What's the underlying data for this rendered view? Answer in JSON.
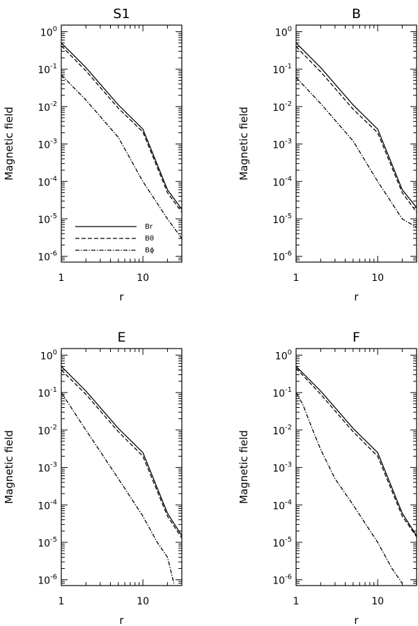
{
  "colors": {
    "background": "#ffffff",
    "ink": "#000000"
  },
  "chart_data": [
    {
      "type": "line",
      "title": "S1",
      "xlabel": "r",
      "ylabel": "Magnetic field",
      "x_scale": "log",
      "y_scale": "log",
      "xlim": [
        1,
        30
      ],
      "ylim": [
        7e-07,
        1.5
      ],
      "x_ticks": [
        1,
        10
      ],
      "x_tick_labels": [
        "1",
        "10"
      ],
      "y_ticks": [
        1,
        0.1,
        0.01,
        0.001,
        0.0001,
        1e-05,
        1e-06
      ],
      "y_tick_labels": [
        {
          "base": "10",
          "exp": "0"
        },
        {
          "base": "10",
          "exp": "-1"
        },
        {
          "base": "10",
          "exp": "-2"
        },
        {
          "base": "10",
          "exp": "-3"
        },
        {
          "base": "10",
          "exp": "-4"
        },
        {
          "base": "10",
          "exp": "-5"
        },
        {
          "base": "10",
          "exp": "-6"
        }
      ],
      "grid": false,
      "legend": {
        "placement": "bottom-left",
        "entries": [
          "Br",
          "Bθ",
          "Bϕ"
        ]
      },
      "series": [
        {
          "name": "Br",
          "linestyle": "solid",
          "x": [
            1,
            2,
            5,
            10,
            20,
            30
          ],
          "y": [
            0.5,
            0.11,
            0.011,
            0.0025,
            6e-05,
            1.8e-05
          ]
        },
        {
          "name": "Bθ",
          "linestyle": "dashed",
          "x": [
            1,
            2,
            5,
            10,
            20,
            30
          ],
          "y": [
            0.42,
            0.09,
            0.009,
            0.0021,
            5e-05,
            1.5e-05
          ]
        },
        {
          "name": "Bϕ",
          "linestyle": "dashdot",
          "x": [
            1,
            2,
            5,
            10,
            20,
            30
          ],
          "y": [
            0.07,
            0.015,
            0.0015,
            0.0001,
            1e-05,
            3e-06
          ]
        }
      ]
    },
    {
      "type": "line",
      "title": "B",
      "xlabel": "r",
      "ylabel": "Magnetic field",
      "x_scale": "log",
      "y_scale": "log",
      "xlim": [
        1,
        30
      ],
      "ylim": [
        7e-07,
        1.5
      ],
      "x_ticks": [
        1,
        10
      ],
      "x_tick_labels": [
        "1",
        "10"
      ],
      "y_ticks": [
        1,
        0.1,
        0.01,
        0.001,
        0.0001,
        1e-05,
        1e-06
      ],
      "y_tick_labels": [
        {
          "base": "10",
          "exp": "0"
        },
        {
          "base": "10",
          "exp": "-1"
        },
        {
          "base": "10",
          "exp": "-2"
        },
        {
          "base": "10",
          "exp": "-3"
        },
        {
          "base": "10",
          "exp": "-4"
        },
        {
          "base": "10",
          "exp": "-5"
        },
        {
          "base": "10",
          "exp": "-6"
        }
      ],
      "grid": false,
      "series": [
        {
          "name": "Br",
          "linestyle": "solid",
          "x": [
            1,
            2,
            5,
            10,
            20,
            30
          ],
          "y": [
            0.5,
            0.11,
            0.011,
            0.0025,
            6e-05,
            2e-05
          ]
        },
        {
          "name": "Bθ",
          "linestyle": "dashed",
          "x": [
            1,
            2,
            5,
            10,
            20,
            30
          ],
          "y": [
            0.4,
            0.085,
            0.0085,
            0.002,
            5e-05,
            1.5e-05
          ]
        },
        {
          "name": "Bϕ",
          "linestyle": "dashdot",
          "x": [
            1,
            2,
            5,
            10,
            20,
            30
          ],
          "y": [
            0.06,
            0.012,
            0.0012,
            0.0001,
            1e-05,
            6e-06
          ]
        }
      ]
    },
    {
      "type": "line",
      "title": "E",
      "xlabel": "r",
      "ylabel": "Magnetic field",
      "x_scale": "log",
      "y_scale": "log",
      "xlim": [
        1,
        30
      ],
      "ylim": [
        7e-07,
        1.5
      ],
      "x_ticks": [
        1,
        10
      ],
      "x_tick_labels": [
        "1",
        "10"
      ],
      "y_ticks": [
        1,
        0.1,
        0.01,
        0.001,
        0.0001,
        1e-05,
        1e-06
      ],
      "y_tick_labels": [
        {
          "base": "10",
          "exp": "0"
        },
        {
          "base": "10",
          "exp": "-1"
        },
        {
          "base": "10",
          "exp": "-2"
        },
        {
          "base": "10",
          "exp": "-3"
        },
        {
          "base": "10",
          "exp": "-4"
        },
        {
          "base": "10",
          "exp": "-5"
        },
        {
          "base": "10",
          "exp": "-6"
        }
      ],
      "grid": false,
      "series": [
        {
          "name": "Br",
          "linestyle": "solid",
          "x": [
            1,
            2,
            5,
            10,
            20,
            30
          ],
          "y": [
            0.5,
            0.11,
            0.011,
            0.0025,
            6e-05,
            1.5e-05
          ]
        },
        {
          "name": "Bθ",
          "linestyle": "dashed",
          "x": [
            1,
            2,
            5,
            10,
            20,
            30
          ],
          "y": [
            0.4,
            0.09,
            0.009,
            0.002,
            5e-05,
            1.3e-05
          ]
        },
        {
          "name": "Bϕ",
          "linestyle": "dashdot",
          "x": [
            1,
            2,
            5,
            10,
            15,
            20,
            24
          ],
          "y": [
            0.1,
            0.01,
            0.0005,
            5e-05,
            1e-05,
            4e-06,
            8e-07
          ]
        }
      ]
    },
    {
      "type": "line",
      "title": "F",
      "xlabel": "r",
      "ylabel": "Magnetic field",
      "x_scale": "log",
      "y_scale": "log",
      "xlim": [
        1,
        30
      ],
      "ylim": [
        7e-07,
        1.5
      ],
      "x_ticks": [
        1,
        10
      ],
      "x_tick_labels": [
        "1",
        "10"
      ],
      "y_ticks": [
        1,
        0.1,
        0.01,
        0.001,
        0.0001,
        1e-05,
        1e-06
      ],
      "y_tick_labels": [
        {
          "base": "10",
          "exp": "0"
        },
        {
          "base": "10",
          "exp": "-1"
        },
        {
          "base": "10",
          "exp": "-2"
        },
        {
          "base": "10",
          "exp": "-3"
        },
        {
          "base": "10",
          "exp": "-4"
        },
        {
          "base": "10",
          "exp": "-5"
        },
        {
          "base": "10",
          "exp": "-6"
        }
      ],
      "grid": false,
      "series": [
        {
          "name": "Br",
          "linestyle": "solid",
          "x": [
            1,
            2,
            5,
            10,
            20,
            30
          ],
          "y": [
            0.5,
            0.11,
            0.011,
            0.0025,
            6e-05,
            1.5e-05
          ]
        },
        {
          "name": "Bθ",
          "linestyle": "dashed",
          "x": [
            1,
            2,
            5,
            10,
            20,
            30
          ],
          "y": [
            0.45,
            0.09,
            0.009,
            0.002,
            5e-05,
            1.4e-05
          ]
        },
        {
          "name": "Bϕ",
          "linestyle": "dashdot",
          "x": [
            1,
            1.2,
            1.6,
            2,
            3,
            5,
            10,
            15,
            20
          ],
          "y": [
            0.1,
            0.05,
            0.01,
            0.003,
            0.0005,
            0.0001,
            1e-05,
            2e-06,
            8e-07
          ]
        }
      ]
    }
  ]
}
